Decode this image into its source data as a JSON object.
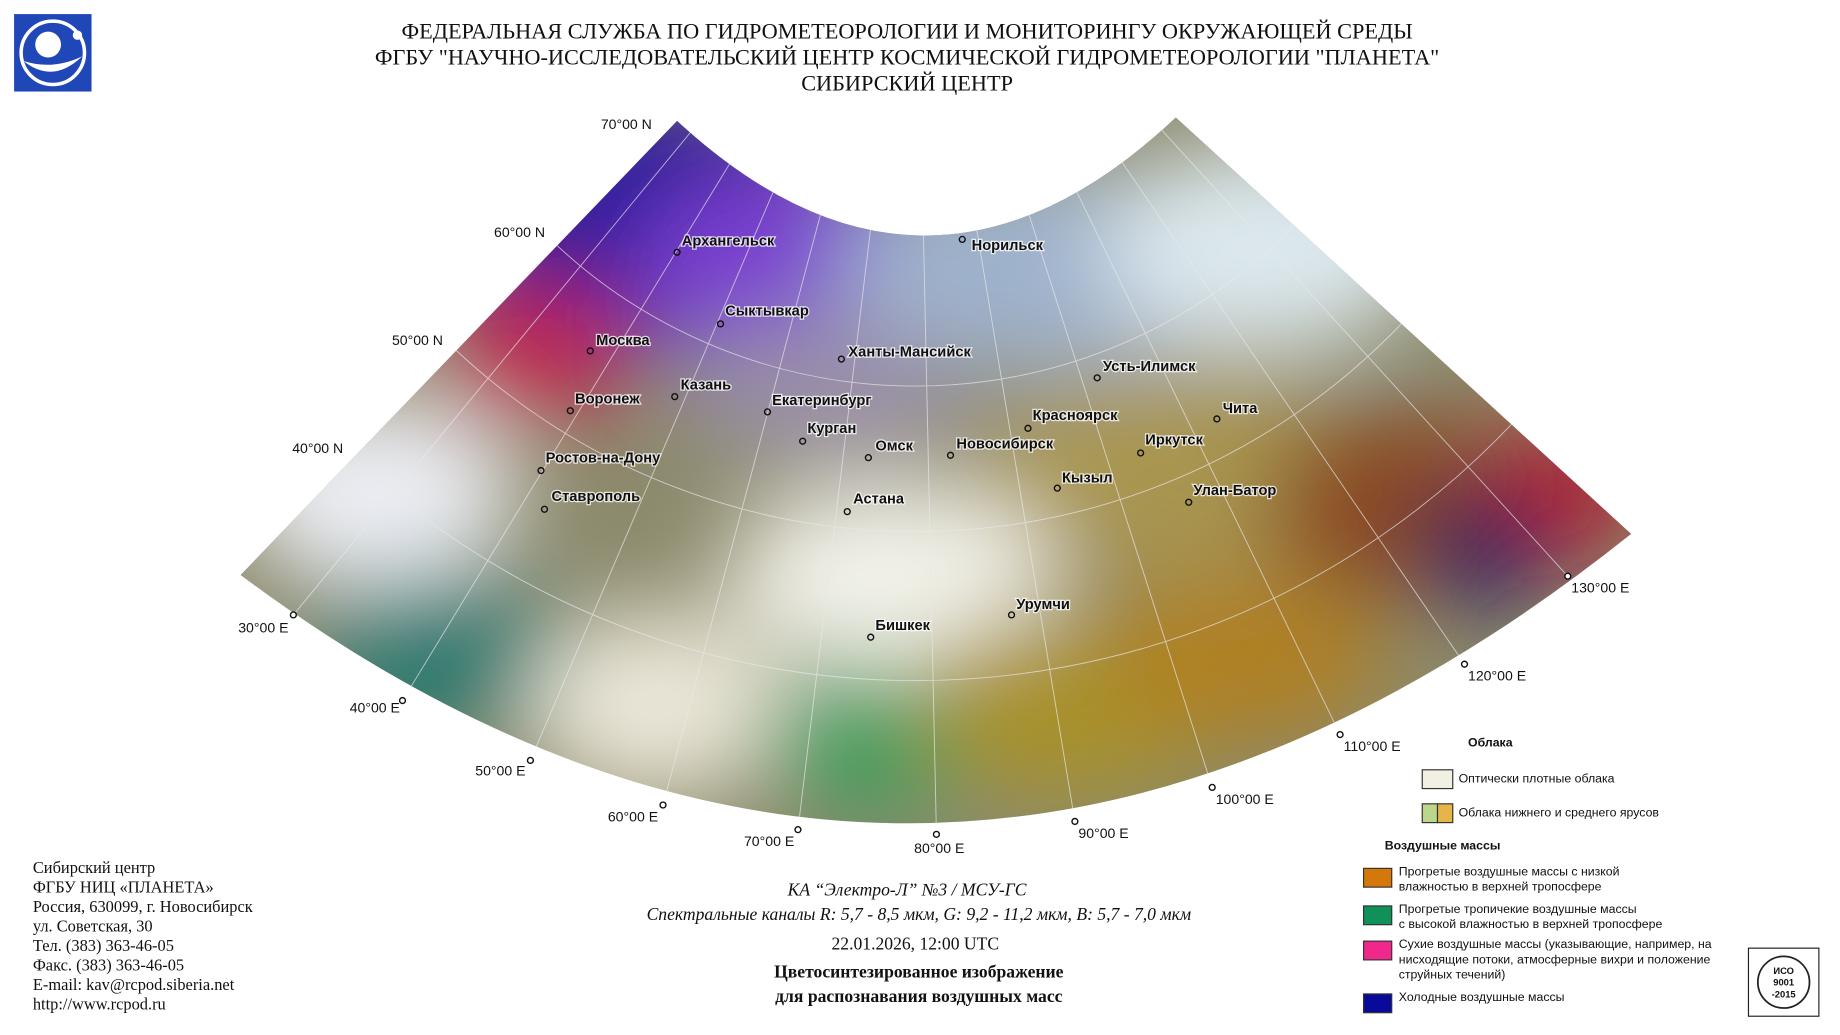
{
  "header": {
    "lines": [
      "ФЕДЕРАЛЬНАЯ СЛУЖБА ПО ГИДРОМЕТЕОРОЛОГИИ И МОНИТОРИНГУ ОКРУЖАЮЩЕЙ СРЕДЫ",
      "ФГБУ \"НАУЧНО-ИССЛЕДОВАТЕЛЬСКИЙ ЦЕНТР КОСМИЧЕСКОЙ ГИДРОМЕТЕОРОЛОГИИ \"ПЛАНЕТА\"",
      "СИБИРСКИЙ ЦЕНТР"
    ]
  },
  "map": {
    "latitude_labels": [
      "70°00 N",
      "60°00 N",
      "50°00 N",
      "40°00 N"
    ],
    "longitude_labels": [
      "30°00 E",
      "40°00 E",
      "50°00 E",
      "60°00 E",
      "70°00 E",
      "80°00 E",
      "90°00 E",
      "100°00 E",
      "110°00 E",
      "120°00 E",
      "130°00 E"
    ],
    "cities": [
      "Архангельск",
      "Норильск",
      "Сыктывкар",
      "Москва",
      "Ханты-Мансийск",
      "Казань",
      "Воронеж",
      "Екатеринбург",
      "Усть-Илимск",
      "Красноярск",
      "Чита",
      "Курган",
      "Омск",
      "Новосибирск",
      "Иркутск",
      "Ростов-на-Дону",
      "Кызыл",
      "Улан-Батор",
      "Ставрополь",
      "Астана",
      "Урумчи",
      "Бишкек"
    ]
  },
  "contact": {
    "lines": [
      "Сибирский центр",
      "ФГБУ НИЦ «ПЛАНЕТА»",
      "Россия, 630099, г. Новосибирск",
      "ул. Советская, 30",
      "Тел. (383) 363-46-05",
      "Факс. (383) 363-46-05",
      "E-mail: kav@rcpod.siberia.net",
      "http://www.rcpod.ru"
    ]
  },
  "caption": {
    "satellite": "КА “Электро-Л” №3 / МСУ-ГС",
    "channels": "Спектральные каналы R: 5,7 - 8,5 мкм, G: 9,2 - 11,2 мкм, B: 5,7 - 7,0 мкм",
    "datetime": "22.01.2026, 12:00 UTC",
    "title_lines": [
      "Цветосинтезированное изображение",
      "для распознавания воздушных масс"
    ]
  },
  "legend": {
    "clouds_title": "Облака",
    "clouds": [
      {
        "label": "Оптически плотные облака",
        "colors": [
          "#f2f0e2"
        ]
      },
      {
        "label": "Облака нижнего и среднего ярусов",
        "colors": [
          "#bcd68c",
          "#e6b54a"
        ]
      }
    ],
    "air_masses_title": "Воздушные массы",
    "air_masses": [
      {
        "lines": [
          "Прогретые воздушные массы с низкой",
          "влажностью в верхней тропосфере"
        ],
        "color": "#d4780a"
      },
      {
        "lines": [
          "Прогретые тропичекие воздушные массы",
          "с высокой влажностью в верхней тропосфере"
        ],
        "color": "#10915a"
      },
      {
        "lines": [
          "Сухие воздушные массы (указывающие, например, на",
          "нисходящие потоки, атмосферные вихри и положение",
          "струйных течений)"
        ],
        "color": "#f0288c"
      },
      {
        "lines": [
          "Холодные воздушные массы"
        ],
        "color": "#0a0a9a"
      }
    ]
  },
  "iso_logo": {
    "lines": [
      "ИСО",
      "9001",
      "-2015"
    ]
  }
}
